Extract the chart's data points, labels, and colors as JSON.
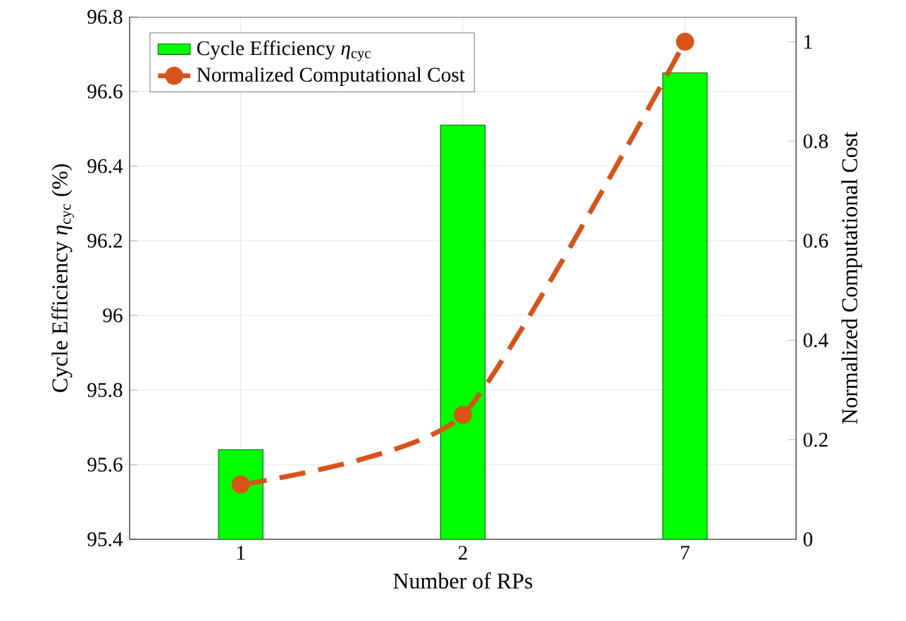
{
  "chart_data": {
    "type": "bar",
    "categories": [
      "1",
      "2",
      "7"
    ],
    "xlabel": "Number of RPs",
    "ylabel": "Cycle Efficiency *η*$_{cyc}$ (%)",
    "y2label": "Normalized Computational Cost",
    "ylim": [
      95.4,
      96.8
    ],
    "yticks": [
      95.4,
      95.6,
      95.8,
      96,
      96.2,
      96.4,
      96.6,
      96.8
    ],
    "y2lim": [
      0,
      1.05
    ],
    "y2ticks": [
      0,
      0.2,
      0.4,
      0.6,
      0.8,
      1
    ],
    "grid": true,
    "legend": "top left",
    "marker": "circle",
    "line_style": "dashed",
    "series": [
      {
        "name": "Cycle Efficiency *η*$_{cyc}$",
        "color": "#00ff00",
        "values": [
          95.64,
          96.51,
          96.65
        ]
      },
      {
        "name": "Normalized Computational Cost",
        "type": "line",
        "axis": "y2",
        "color": "#d95319",
        "values": [
          0.11,
          0.25,
          1
        ]
      }
    ]
  }
}
